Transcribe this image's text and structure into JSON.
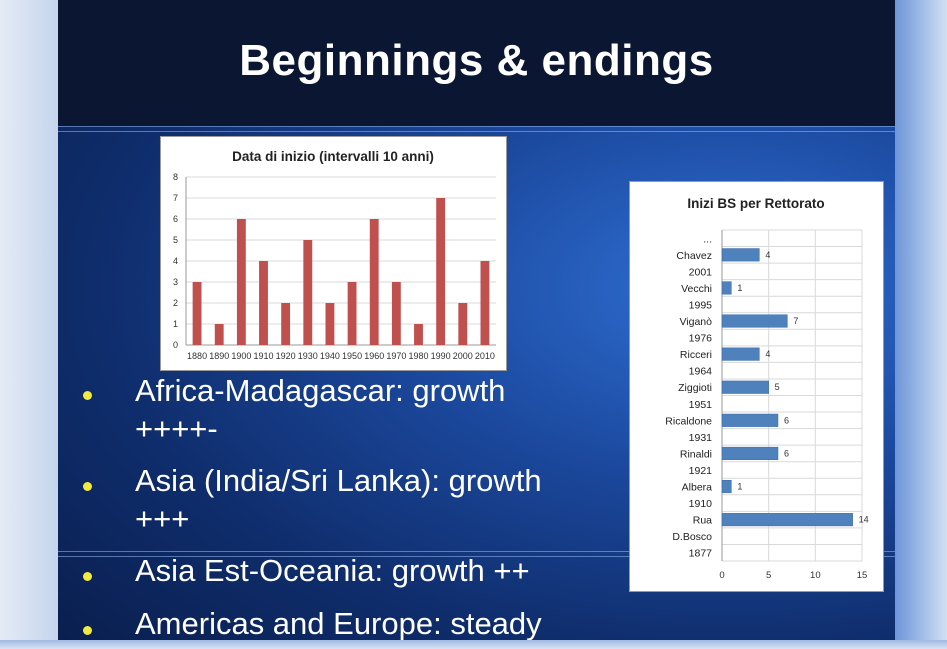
{
  "slide": {
    "title": "Beginnings & endings",
    "bullets": [
      {
        "line1": "Africa-Madagascar: growth",
        "line2": "++++-"
      },
      {
        "line1": "Asia (India/Sri Lanka): growth",
        "line2": "+++"
      },
      {
        "line1": "Asia Est-Oceania: growth ++",
        "line2": ""
      },
      {
        "line1": "Americas and Europe: steady",
        "line2": ""
      }
    ],
    "colors": {
      "title_band": "#0b1632",
      "bullet_dot": "#f2ea3c",
      "bar_red": "#c0504d",
      "bar_blue": "#4f81bd"
    }
  },
  "chart_data": [
    {
      "type": "bar",
      "title": "Data di inizio (intervalli 10 anni)",
      "categories": [
        "1880",
        "1890",
        "1900",
        "1910",
        "1920",
        "1930",
        "1940",
        "1950",
        "1960",
        "1970",
        "1980",
        "1990",
        "2000",
        "2010"
      ],
      "values": [
        3,
        1,
        6,
        4,
        2,
        5,
        2,
        3,
        6,
        3,
        1,
        7,
        2,
        4
      ],
      "ylim": [
        0,
        8
      ],
      "yticks": [
        "0",
        "1",
        "2",
        "3",
        "4",
        "5",
        "6",
        "7",
        "8"
      ],
      "grid": true,
      "bar_color": "#c0504d"
    },
    {
      "type": "bar",
      "orientation": "horizontal",
      "title": "Inizi BS per Rettorato",
      "categories": [
        "...",
        "Chavez",
        "2001",
        "Vecchi",
        "1995",
        "Viganò",
        "1976",
        "Ricceri",
        "1964",
        "Ziggioti",
        "1951",
        "Ricaldone",
        "1931",
        "Rinaldi",
        "1921",
        "Albera",
        "1910",
        "Rua",
        "D.Bosco",
        "1877"
      ],
      "values": [
        null,
        4,
        null,
        1,
        null,
        7,
        null,
        4,
        null,
        5,
        null,
        6,
        null,
        6,
        null,
        1,
        null,
        14,
        null,
        null
      ],
      "data_labels": [
        "",
        "4",
        "",
        "1",
        "",
        "7",
        "",
        "4",
        "",
        "5",
        "",
        "6",
        "",
        "6",
        "",
        "1",
        "",
        "14",
        "",
        ""
      ],
      "xlim": [
        0,
        15
      ],
      "xticks": [
        "0",
        "5",
        "10",
        "15"
      ],
      "grid": true,
      "bar_color": "#4f81bd"
    }
  ]
}
